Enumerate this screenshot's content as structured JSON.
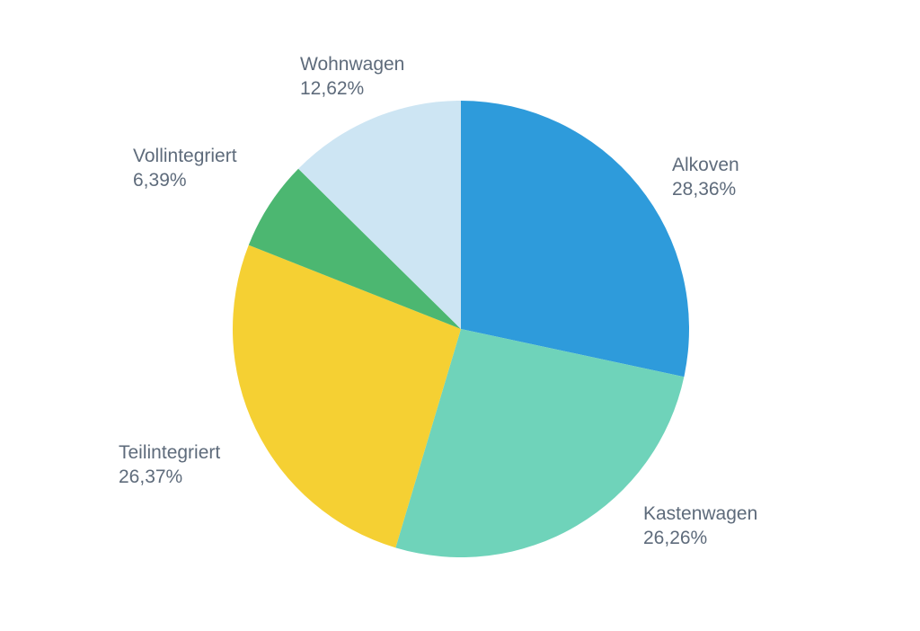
{
  "chart_data": {
    "type": "pie",
    "title": "",
    "start": "12 o'clock",
    "direction": "clockwise",
    "legend": "none",
    "slices": [
      {
        "label": "Alkoven",
        "value": 28.36,
        "value_label": "28,36%",
        "color": "#2e9bdb"
      },
      {
        "label": "Kastenwagen",
        "value": 26.26,
        "value_label": "26,26%",
        "color": "#6fd3ba"
      },
      {
        "label": "Teilintegriert",
        "value": 26.37,
        "value_label": "26,37%",
        "color": "#f5d033"
      },
      {
        "label": "Vollintegriert",
        "value": 6.39,
        "value_label": "6,39%",
        "color": "#4cb771"
      },
      {
        "label": "Wohnwagen",
        "value": 12.62,
        "value_label": "12,62%",
        "color": "#cde5f3"
      }
    ]
  }
}
